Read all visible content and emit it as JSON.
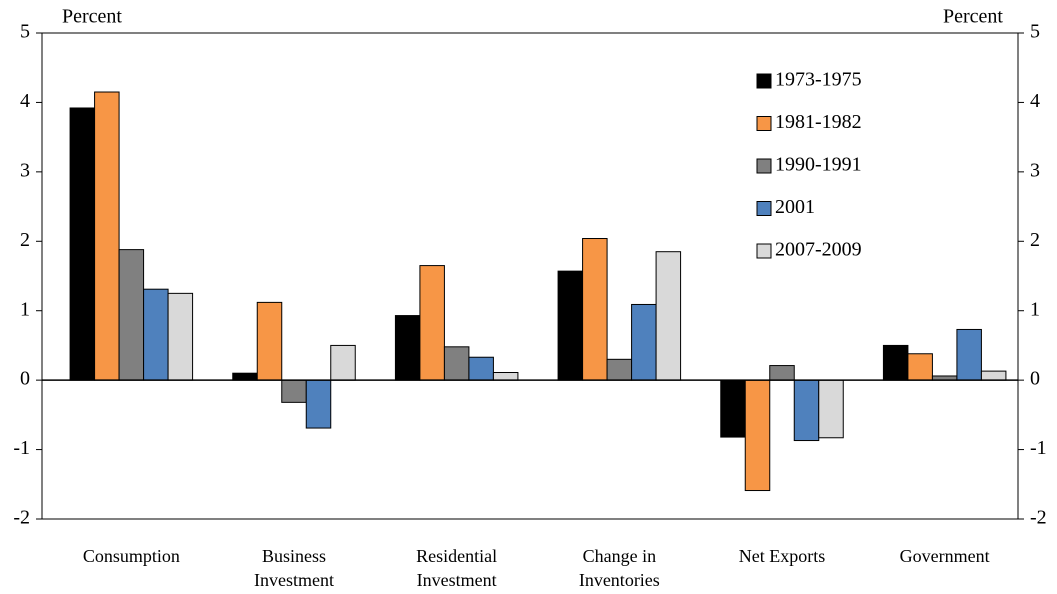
{
  "chart_data": {
    "type": "bar",
    "y_label": "Percent",
    "y2_label": "Percent",
    "categories": [
      "Consumption",
      "Business Investment",
      "Residential Investment",
      "Change in Inventories",
      "Net Exports",
      "Government"
    ],
    "series": [
      {
        "name": "1973-1975",
        "color": "#000000",
        "values": [
          3.92,
          0.1,
          0.93,
          1.57,
          -0.82,
          0.5
        ]
      },
      {
        "name": "1981-1982",
        "color": "#f79646",
        "values": [
          4.15,
          1.12,
          1.65,
          2.04,
          -1.59,
          0.38
        ]
      },
      {
        "name": "1990-1991",
        "color": "#808080",
        "values": [
          1.88,
          -0.32,
          0.48,
          0.3,
          0.21,
          0.06
        ]
      },
      {
        "name": "2001",
        "color": "#4f81bd",
        "values": [
          1.31,
          -0.69,
          0.33,
          1.09,
          -0.87,
          0.73
        ]
      },
      {
        "name": "2007-2009",
        "color": "#d9d9d9",
        "values": [
          1.25,
          0.5,
          0.11,
          1.85,
          -0.83,
          0.13
        ]
      }
    ],
    "ylim": [
      -2,
      5
    ],
    "yticks": [
      -2,
      -1,
      0,
      1,
      2,
      3,
      4,
      5
    ],
    "y2lim": [
      -2,
      5
    ],
    "y2ticks": [
      -2,
      -1,
      0,
      1,
      2,
      3,
      4,
      5
    ],
    "grid": false,
    "legend": "top-right"
  }
}
